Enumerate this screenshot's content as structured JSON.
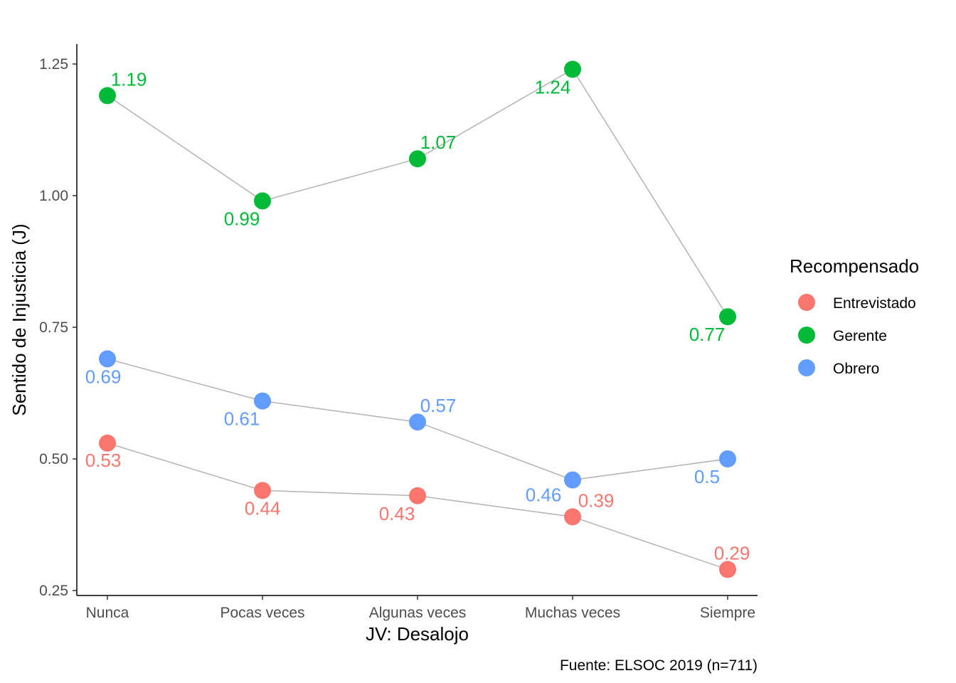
{
  "chart_data": {
    "type": "line",
    "title": "",
    "xlabel": "JV: Desalojo",
    "ylabel": "Sentido de Injusticia (J)",
    "caption": "Fuente: ELSOC 2019 (n=711)",
    "categories": [
      "Nunca",
      "Pocas veces",
      "Algunas veces",
      "Muchas veces",
      "Siempre"
    ],
    "ylim": [
      0.25,
      1.28
    ],
    "yticks": [
      0.25,
      0.5,
      0.75,
      1.0,
      1.25
    ],
    "ytick_labels": [
      "0.25",
      "0.50",
      "0.75",
      "1.00",
      "1.25"
    ],
    "grid": false,
    "legend": {
      "title": "Recompensado",
      "position": "right"
    },
    "line_color": "#b3b3b3",
    "series": [
      {
        "name": "Entrevistado",
        "color": "#F8766D",
        "values": [
          0.53,
          0.44,
          0.43,
          0.39,
          0.29
        ],
        "labels": [
          "0.53",
          "0.44",
          "0.43",
          "0.39",
          "0.29"
        ]
      },
      {
        "name": "Gerente",
        "color": "#00BA38",
        "values": [
          1.19,
          0.99,
          1.07,
          1.24,
          0.77
        ],
        "labels": [
          "1.19",
          "0.99",
          "1.07",
          "1.24",
          "0.77"
        ]
      },
      {
        "name": "Obrero",
        "color": "#619CFF",
        "values": [
          0.69,
          0.61,
          0.57,
          0.46,
          0.5
        ],
        "labels": [
          "0.69",
          "0.61",
          "0.57",
          "0.46",
          "0.5"
        ]
      }
    ]
  }
}
